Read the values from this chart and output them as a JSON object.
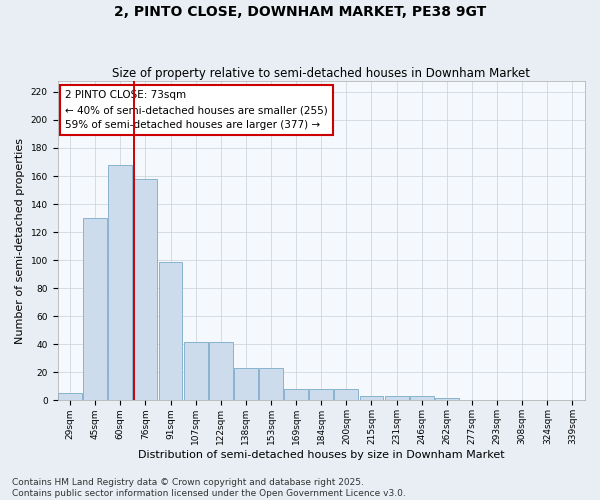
{
  "title": "2, PINTO CLOSE, DOWNHAM MARKET, PE38 9GT",
  "subtitle": "Size of property relative to semi-detached houses in Downham Market",
  "xlabel": "Distribution of semi-detached houses by size in Downham Market",
  "ylabel": "Number of semi-detached properties",
  "footer_line1": "Contains HM Land Registry data © Crown copyright and database right 2025.",
  "footer_line2": "Contains public sector information licensed under the Open Government Licence v3.0.",
  "categories": [
    "29sqm",
    "45sqm",
    "60sqm",
    "76sqm",
    "91sqm",
    "107sqm",
    "122sqm",
    "138sqm",
    "153sqm",
    "169sqm",
    "184sqm",
    "200sqm",
    "215sqm",
    "231sqm",
    "246sqm",
    "262sqm",
    "277sqm",
    "293sqm",
    "308sqm",
    "324sqm",
    "339sqm"
  ],
  "values": [
    5,
    130,
    168,
    158,
    99,
    42,
    42,
    23,
    23,
    8,
    8,
    8,
    3,
    3,
    3,
    2,
    0,
    0,
    0,
    0,
    0
  ],
  "bar_color": "#ccdcec",
  "bar_edge_color": "#7aaac8",
  "vline_index": 2.55,
  "vline_color": "#cc0000",
  "property_label": "2 PINTO CLOSE: 73sqm",
  "smaller_pct": "40% of semi-detached houses are smaller (255)",
  "larger_pct": "59% of semi-detached houses are larger (377)",
  "ylim": [
    0,
    228
  ],
  "yticks": [
    0,
    20,
    40,
    60,
    80,
    100,
    120,
    140,
    160,
    180,
    200,
    220
  ],
  "background_color": "#e8eef4",
  "plot_background_color": "#f5f8fc",
  "grid_color": "#c8d0d8",
  "title_fontsize": 10,
  "subtitle_fontsize": 8.5,
  "axis_label_fontsize": 8,
  "tick_fontsize": 6.5,
  "footer_fontsize": 6.5,
  "annot_fontsize": 7.5
}
